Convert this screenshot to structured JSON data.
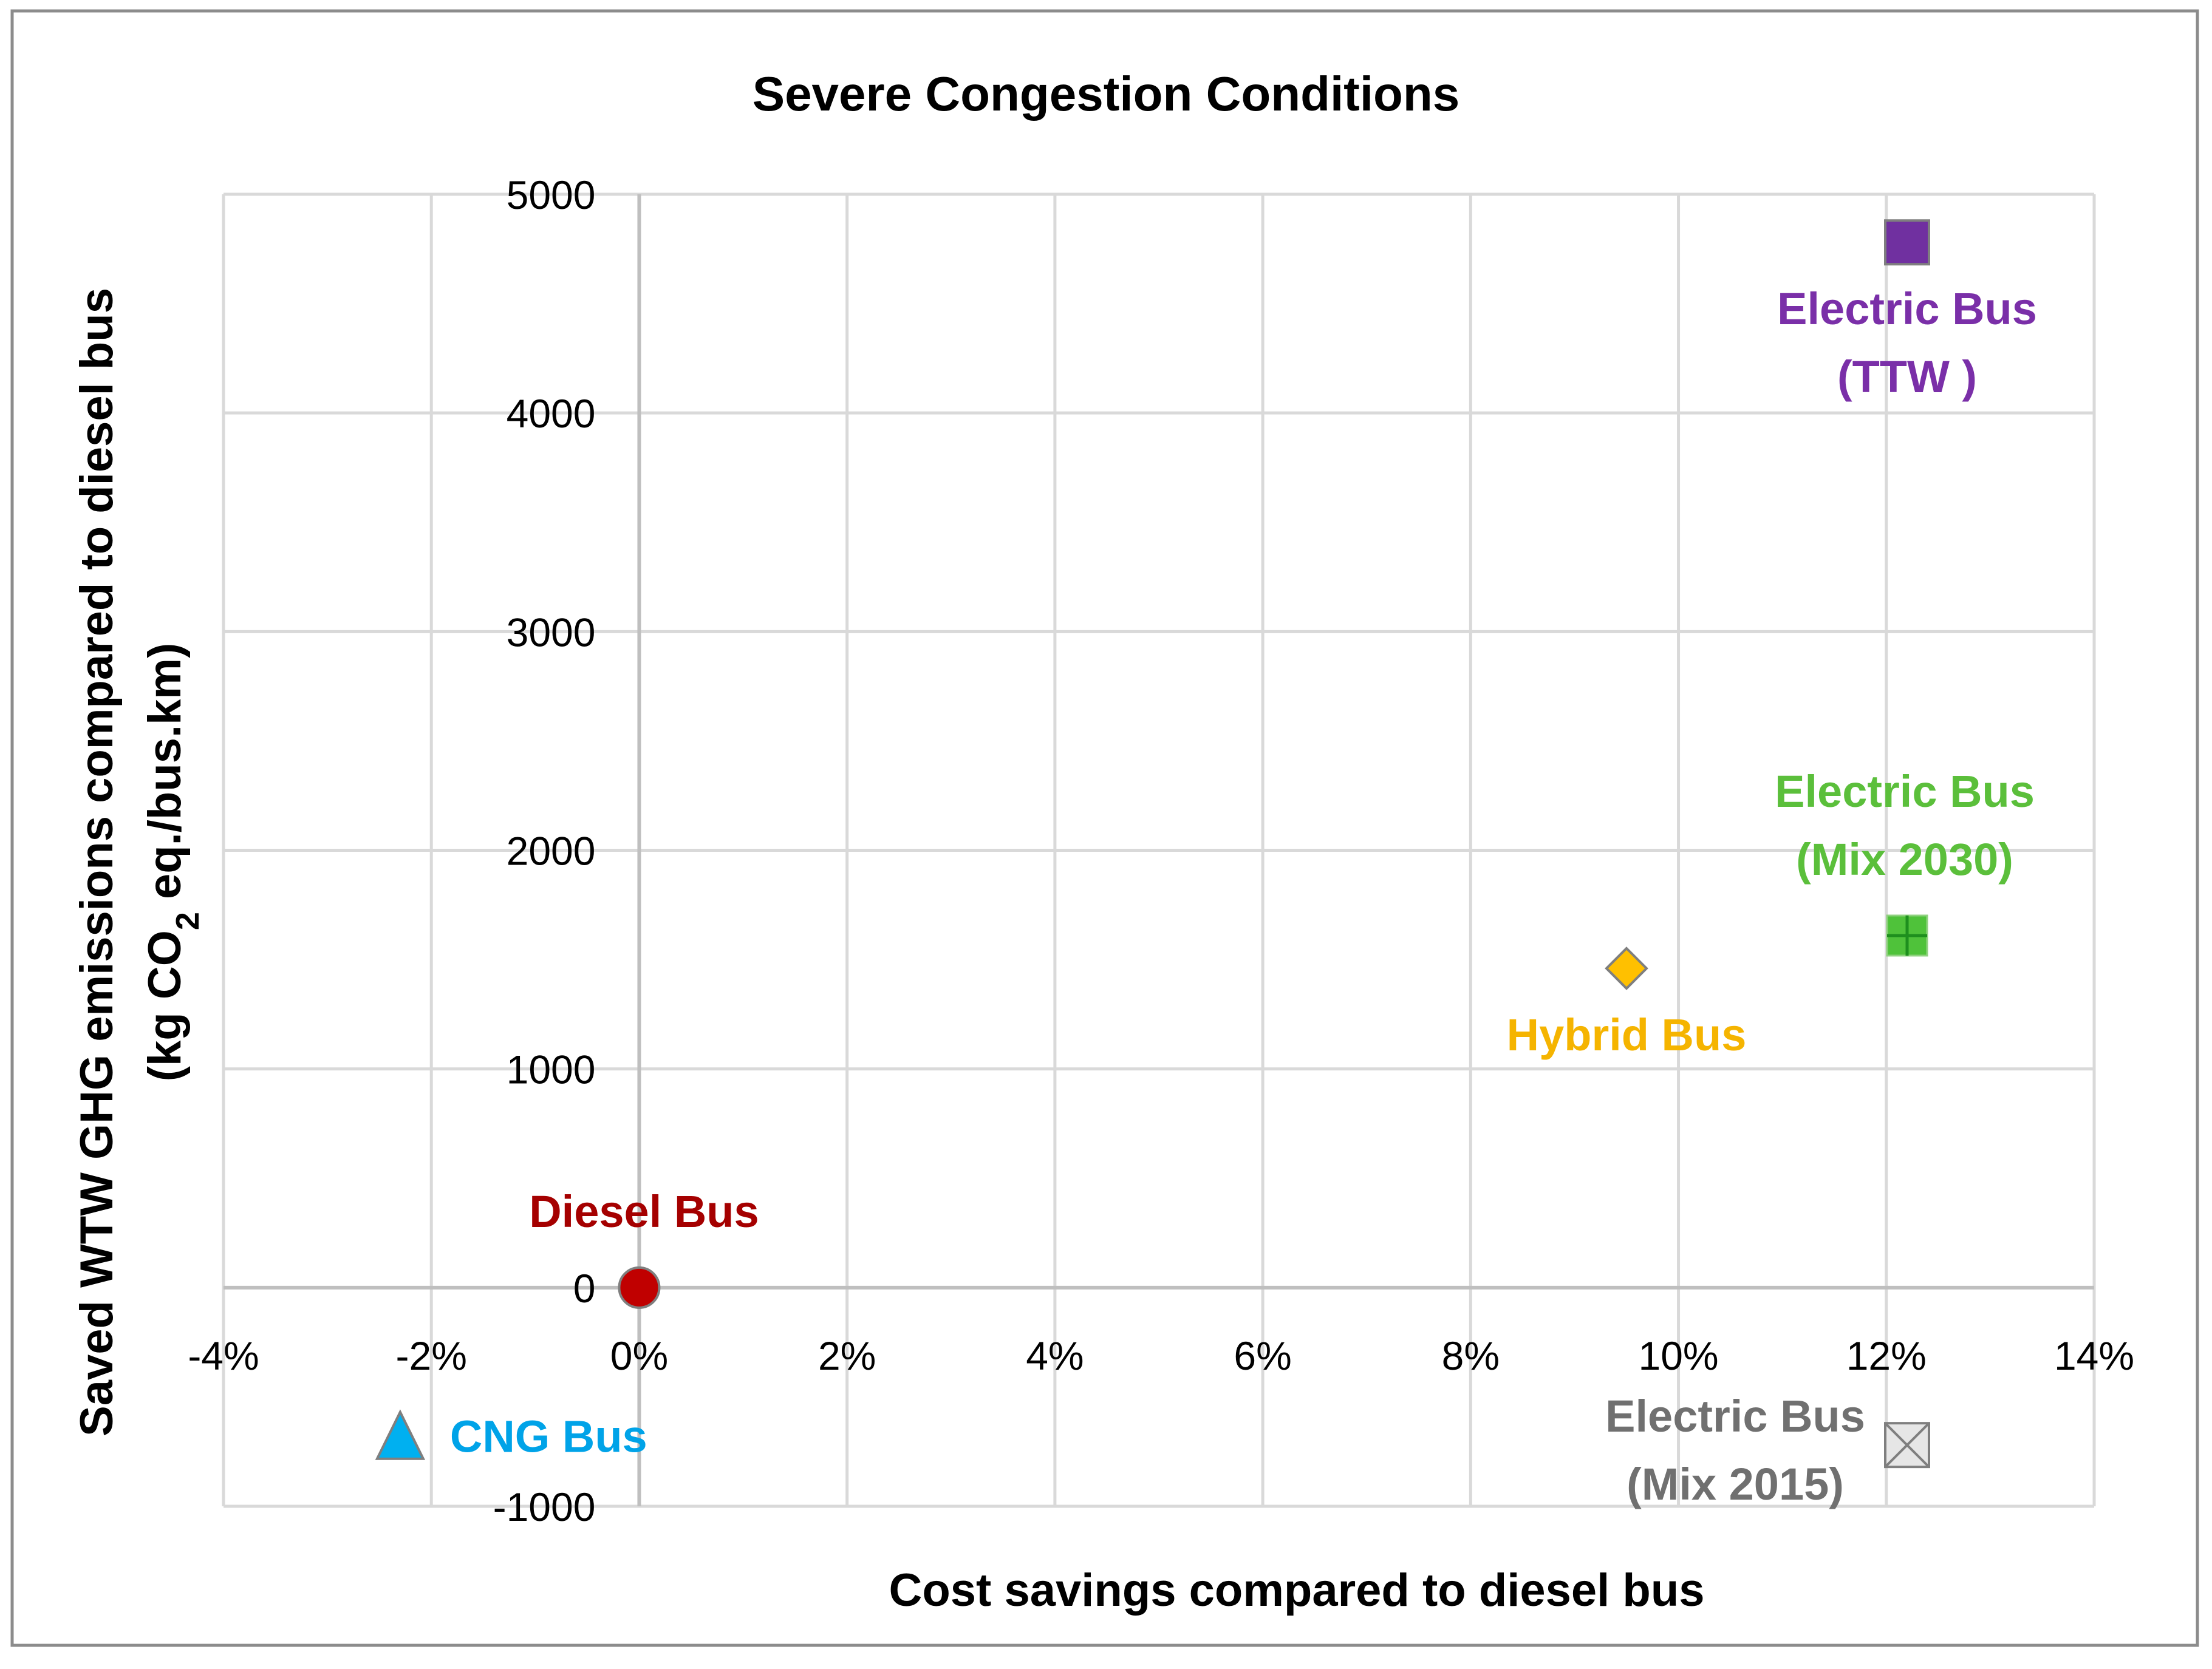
{
  "chart_data": {
    "type": "scatter",
    "title": "Severe Congestion Conditions",
    "xlabel": "Cost savings compared to diesel bus",
    "ylabel": {
      "line1": "Saved WTW GHG emissions compared to diesel bus",
      "line2_prefix": "(kg CO",
      "line2_sub": "2",
      "line2_suffix": " eq./bus.km)"
    },
    "xlim": [
      -0.04,
      0.14
    ],
    "ylim": [
      -1000,
      5000
    ],
    "x_format": "percent",
    "grid": true,
    "x_ticks": [
      {
        "value": -0.04,
        "label": "-4%"
      },
      {
        "value": -0.02,
        "label": "-2%"
      },
      {
        "value": 0.0,
        "label": "0%"
      },
      {
        "value": 0.02,
        "label": "2%"
      },
      {
        "value": 0.04,
        "label": "4%"
      },
      {
        "value": 0.06,
        "label": "6%"
      },
      {
        "value": 0.08,
        "label": "8%"
      },
      {
        "value": 0.1,
        "label": "10%"
      },
      {
        "value": 0.12,
        "label": "12%"
      },
      {
        "value": 0.14,
        "label": "14%"
      }
    ],
    "y_ticks": [
      {
        "value": 5000,
        "label": "5000"
      },
      {
        "value": 4000,
        "label": "4000"
      },
      {
        "value": 3000,
        "label": "3000"
      },
      {
        "value": 2000,
        "label": "2000"
      },
      {
        "value": 1000,
        "label": "1000"
      },
      {
        "value": 0,
        "label": "0"
      },
      {
        "value": -1000,
        "label": "-1000"
      }
    ],
    "series": [
      {
        "name": "Diesel Bus",
        "label_lines": [
          "Diesel Bus"
        ],
        "x": 0.0,
        "y": 0,
        "marker": "circle",
        "color": "#C00000",
        "label_color": "#A50000",
        "label_pos": "above"
      },
      {
        "name": "CNG Bus",
        "label_lines": [
          "CNG Bus"
        ],
        "x": -0.023,
        "y": -680,
        "marker": "triangle",
        "color": "#00B0F0",
        "label_color": "#00A3E8",
        "label_pos": "right"
      },
      {
        "name": "Hybrid Bus",
        "label_lines": [
          "Hybrid Bus"
        ],
        "x": 0.095,
        "y": 1460,
        "marker": "diamond",
        "color": "#FFC000",
        "label_color": "#F5B400",
        "label_pos": "below"
      },
      {
        "name": "Electric Bus (TTW)",
        "label_lines": [
          "Electric Bus",
          "(TTW )"
        ],
        "x": 0.122,
        "y": 4780,
        "marker": "square",
        "color": "#7030A0",
        "label_color": "#7A2FA8",
        "label_pos": "below"
      },
      {
        "name": "Electric Bus (Mix 2030)",
        "label_lines": [
          "Electric Bus",
          "(Mix 2030)"
        ],
        "x": 0.122,
        "y": 1610,
        "marker": "square-plus",
        "color": "#4FC23A",
        "label_color": "#5BBF3B",
        "label_pos": "above"
      },
      {
        "name": "Electric Bus (Mix 2015)",
        "label_lines": [
          "Electric Bus",
          "(Mix 2015)"
        ],
        "x": 0.122,
        "y": -720,
        "marker": "square-x",
        "color": "#E6E6E6",
        "label_color": "#707070",
        "label_pos": "left"
      }
    ]
  }
}
